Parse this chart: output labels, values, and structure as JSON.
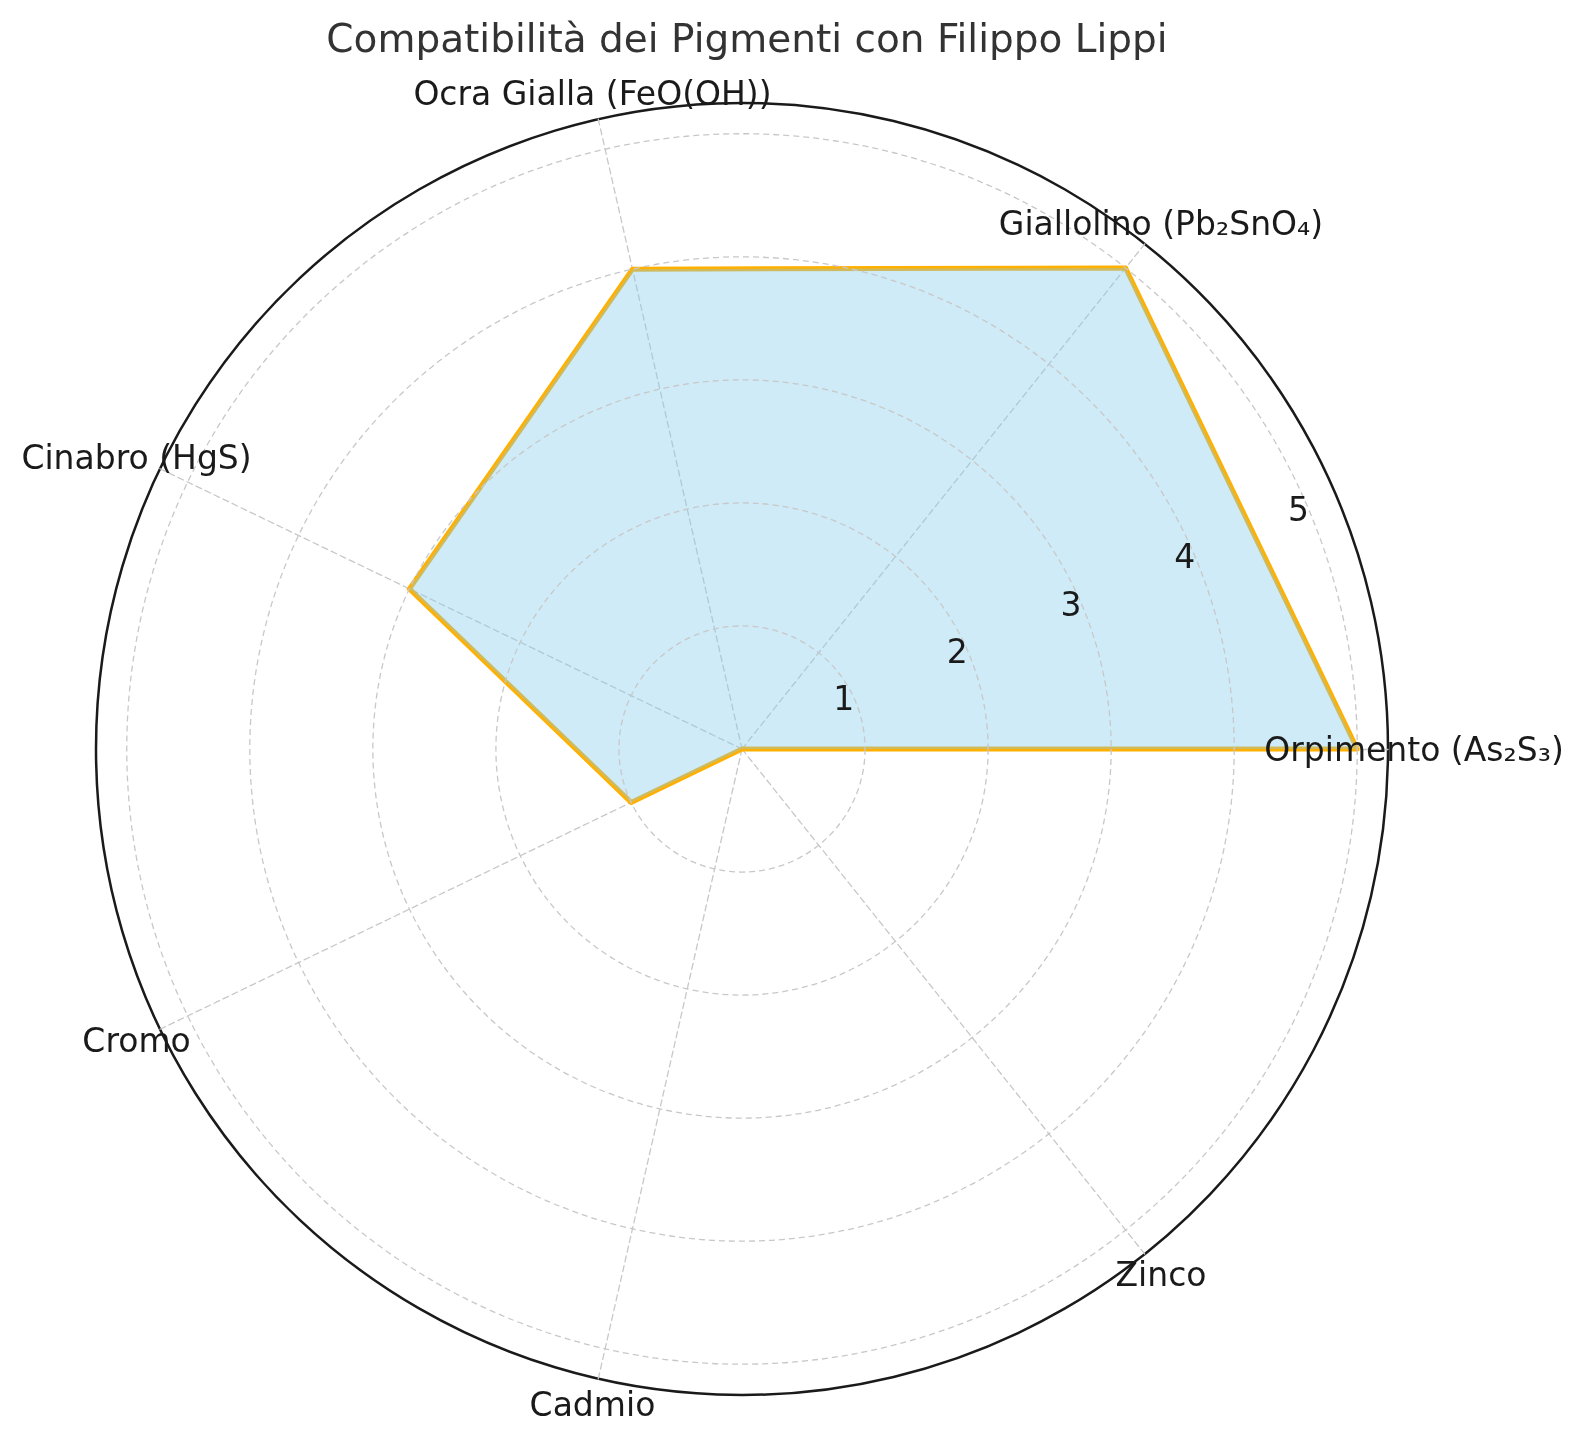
{
  "chart_data": {
    "type": "radar",
    "title": "Compatibilità dei Pigmenti con Filippo Lippi",
    "categories": [
      "Giallolino (Pb₂SnO₄)",
      "Orpimento (As₂S₃)",
      "Zinco",
      "Cadmio",
      "Cromo",
      "Cinabro (HgS)",
      "Ocra Gialla (FeO(OH))"
    ],
    "series": [
      {
        "color": "#ffb000",
        "values": [
          5,
          5,
          0,
          0,
          1,
          3,
          4
        ]
      }
    ],
    "ylim": [
      0,
      5.25
    ],
    "yticks": [
      1,
      2,
      3,
      4,
      5
    ],
    "grid": true,
    "marker": "none",
    "line_style": "solid"
  }
}
